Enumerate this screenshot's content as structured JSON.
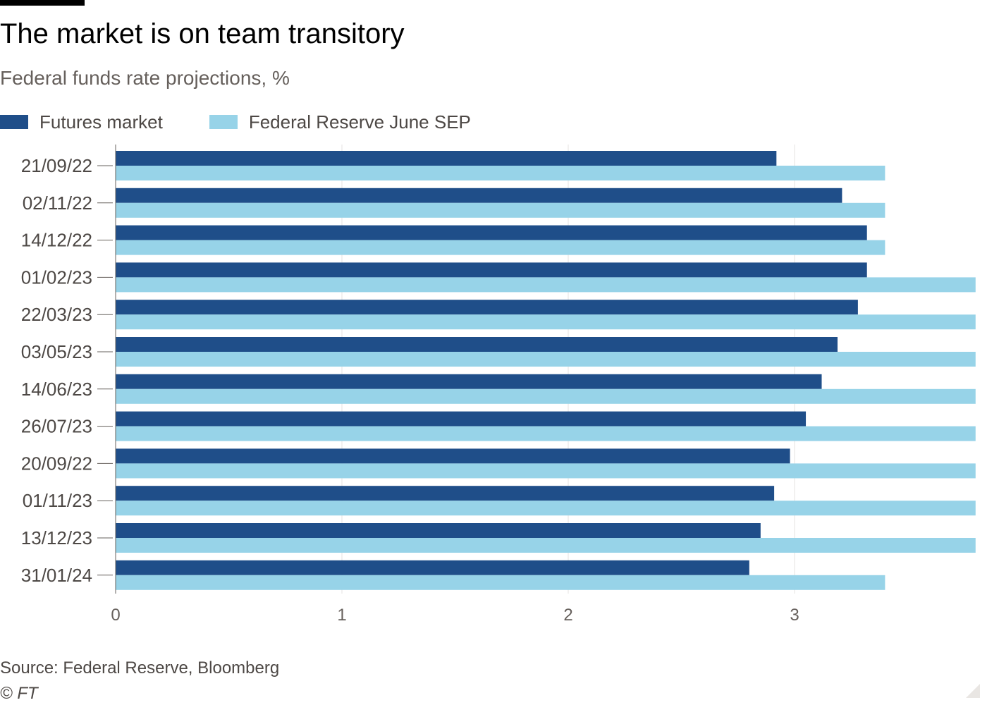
{
  "title": "The market is on team transitory",
  "subtitle": "Federal funds rate projections, %",
  "source": "Source: Federal Reserve, Bloomberg",
  "copyright": "© FT",
  "colors": {
    "futures": "#1f4e89",
    "fed": "#97d3e8",
    "grid": "#e6e3e0",
    "tick_text": "#66605c"
  },
  "chart_data": {
    "type": "bar",
    "orientation": "horizontal",
    "title": "The market is on team transitory",
    "subtitle": "Federal funds rate projections, %",
    "categories": [
      "21/09/22",
      "02/11/22",
      "14/12/22",
      "01/02/23",
      "22/03/23",
      "03/05/23",
      "14/06/23",
      "26/07/23",
      "20/09/22",
      "01/11/23",
      "13/12/23",
      "31/01/24"
    ],
    "series": [
      {
        "name": "Futures market",
        "color": "#1f4e89",
        "values": [
          2.92,
          3.21,
          3.32,
          3.32,
          3.28,
          3.19,
          3.12,
          3.05,
          2.98,
          2.91,
          2.85,
          2.8
        ]
      },
      {
        "name": "Federal Reserve June SEP",
        "color": "#97d3e8",
        "values": [
          3.4,
          3.4,
          3.4,
          3.8,
          3.8,
          3.8,
          3.8,
          3.8,
          3.8,
          3.8,
          3.8,
          3.4
        ]
      }
    ],
    "xlim": [
      0,
      3.8
    ],
    "xticks": [
      0,
      1,
      2,
      3
    ],
    "grid": true,
    "legend_position": "top-left"
  }
}
